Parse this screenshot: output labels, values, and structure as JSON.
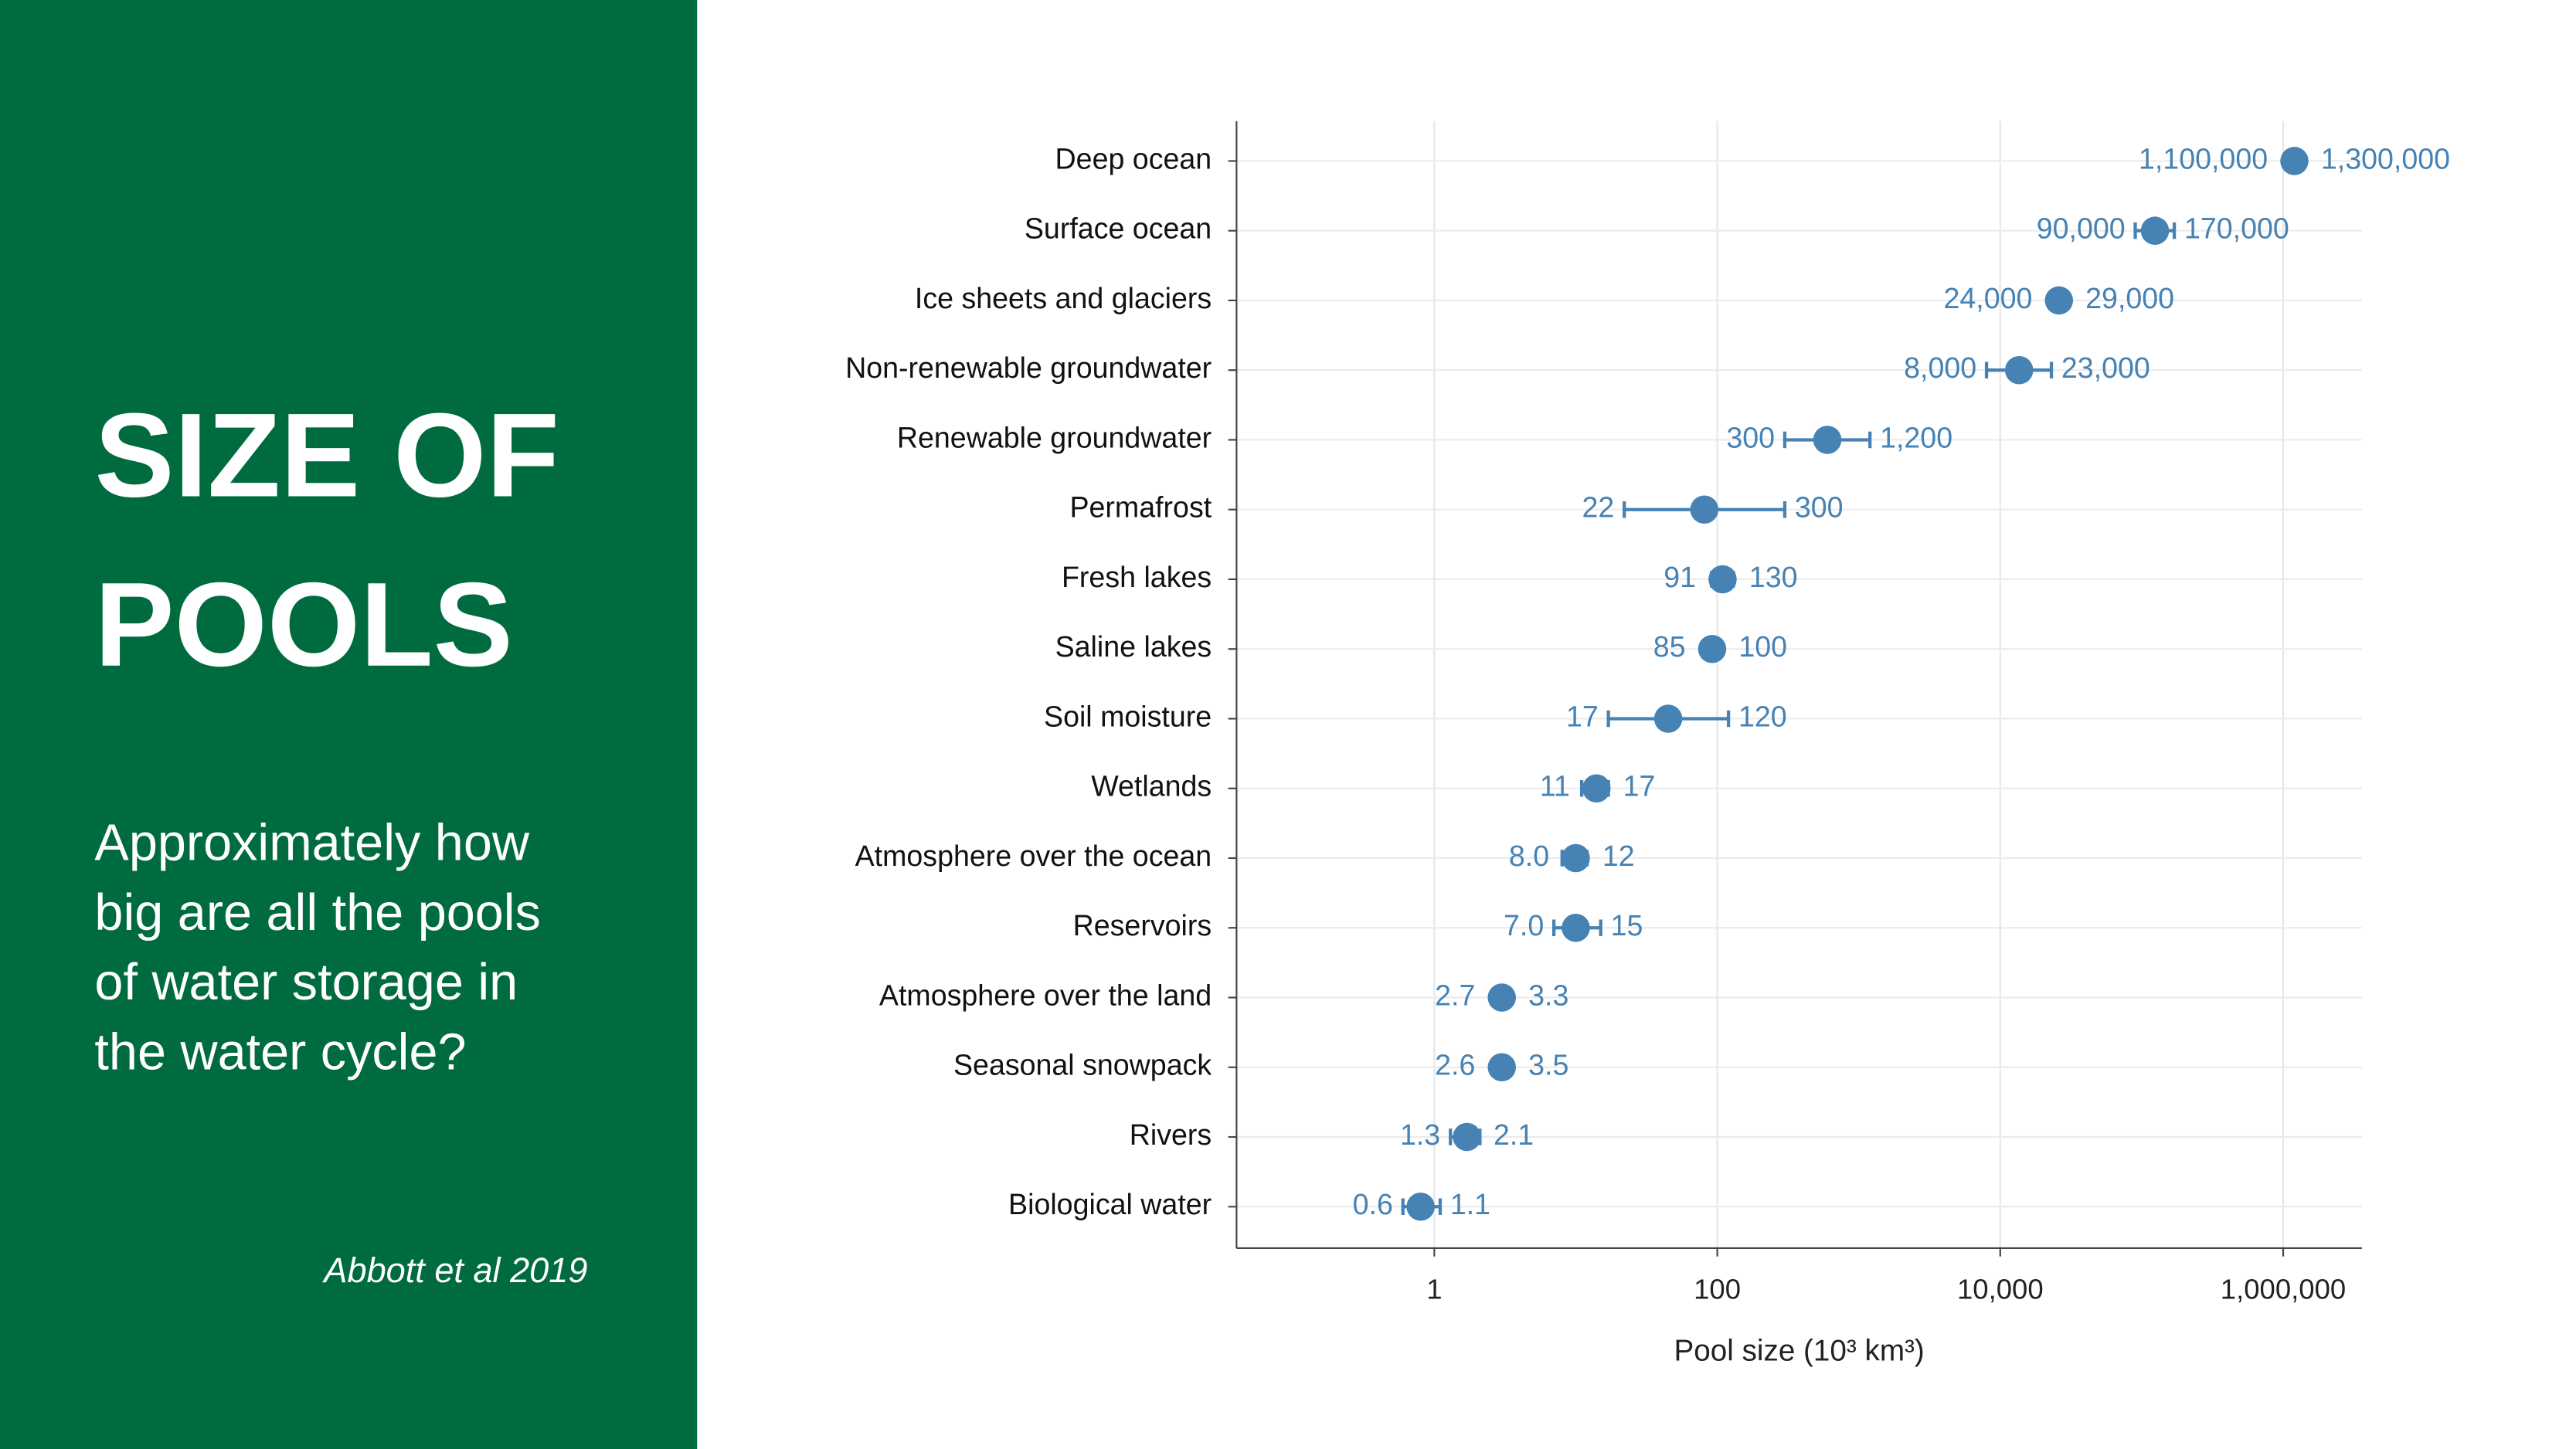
{
  "panel": {
    "title_lines": [
      "SIZE OF",
      "POOLS"
    ],
    "subtitle_lines": [
      "Approximately how",
      "big are all the pools",
      "of water storage in",
      "the water cycle?"
    ],
    "citation": "Abbott et al 2019"
  },
  "chart_data": {
    "type": "dot-range",
    "xlabel": "Pool size (10³ km³)",
    "categories": [
      "Deep ocean",
      "Surface ocean",
      "Ice sheets and glaciers",
      "Non-renewable groundwater",
      "Renewable groundwater",
      "Permafrost",
      "Fresh lakes",
      "Saline lakes",
      "Soil moisture",
      "Wetlands",
      "Atmosphere over the ocean",
      "Reservoirs",
      "Atmosphere over the land",
      "Seasonal snowpack",
      "Rivers",
      "Biological water"
    ],
    "series": [
      {
        "color": "#4682b4",
        "values": [
          1200000,
          124000,
          26000,
          13600,
          600,
          81,
          109,
          92,
          45,
          14,
          10,
          10,
          3,
          3,
          1.7,
          0.8
        ],
        "low": [
          1100000,
          90000,
          24000,
          8000,
          300,
          22,
          91,
          85,
          17,
          11,
          8,
          7,
          2.7,
          2.6,
          1.3,
          0.6
        ],
        "low_labels": [
          "1,100,000",
          "90,000",
          "24,000",
          "8,000",
          "300",
          "22",
          "91",
          "85",
          "17",
          "11",
          "8.0",
          "7.0",
          "2.7",
          "2.6",
          "1.3",
          "0.6"
        ],
        "high": [
          1300000,
          170000,
          29000,
          23000,
          1200,
          300,
          130,
          100,
          120,
          17,
          12,
          15,
          3.3,
          3.5,
          2.1,
          1.1
        ],
        "high_labels": [
          "1,300,000",
          "170,000",
          "29,000",
          "23,000",
          "1,200",
          "300",
          "130",
          "100",
          "120",
          "17",
          "12",
          "15",
          "3.3",
          "3.5",
          "2.1",
          "1.1"
        ]
      }
    ],
    "xscale": "log",
    "xlim": [
      0.04,
      3600000
    ],
    "xticks": [
      1,
      100,
      {
        "value": 10000,
        "label": "10,000"
      },
      {
        "value": 1000000,
        "label": "1,000,000"
      }
    ],
    "grid": true
  }
}
